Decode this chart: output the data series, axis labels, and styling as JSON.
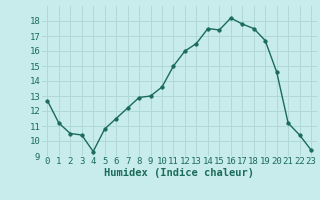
{
  "x": [
    0,
    1,
    2,
    3,
    4,
    5,
    6,
    7,
    8,
    9,
    10,
    11,
    12,
    13,
    14,
    15,
    16,
    17,
    18,
    19,
    20,
    21,
    22,
    23
  ],
  "y": [
    12.7,
    11.2,
    10.5,
    10.4,
    9.3,
    10.8,
    11.5,
    12.2,
    12.9,
    13.0,
    13.6,
    15.0,
    16.0,
    16.5,
    17.5,
    17.4,
    18.2,
    17.8,
    17.5,
    16.7,
    14.6,
    11.2,
    10.4,
    9.4
  ],
  "line_color": "#1a6b5a",
  "marker_color": "#1a6b5a",
  "bg_color": "#c8ecec",
  "grid_color": "#b0d8d8",
  "xlabel": "Humidex (Indice chaleur)",
  "xlabel_color": "#1a6b5a",
  "ylim": [
    9,
    19
  ],
  "xlim": [
    -0.5,
    23.5
  ],
  "yticks": [
    9,
    10,
    11,
    12,
    13,
    14,
    15,
    16,
    17,
    18
  ],
  "xticks": [
    0,
    1,
    2,
    3,
    4,
    5,
    6,
    7,
    8,
    9,
    10,
    11,
    12,
    13,
    14,
    15,
    16,
    17,
    18,
    19,
    20,
    21,
    22,
    23
  ],
  "tick_color": "#1a6b5a",
  "tick_fontsize": 6.5,
  "xlabel_fontsize": 7.5
}
